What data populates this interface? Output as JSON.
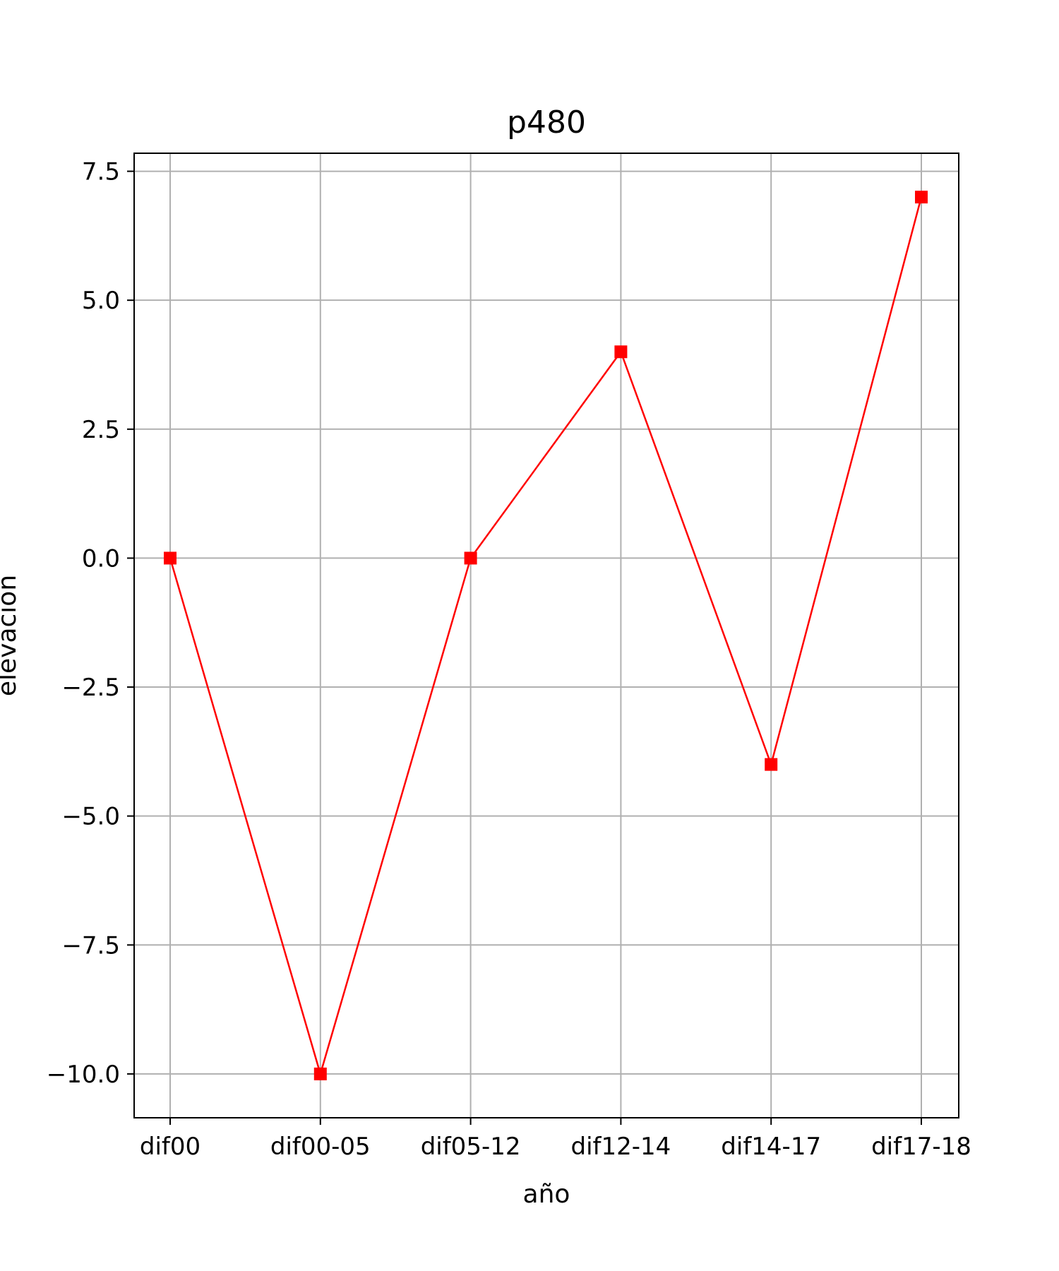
{
  "chart_data": {
    "type": "line",
    "title": "p480",
    "xlabel": "año",
    "ylabel": "elevación",
    "categories": [
      "dif00",
      "dif00-05",
      "dif05-12",
      "dif12-14",
      "dif14-17",
      "dif17-18"
    ],
    "series": [
      {
        "values": [
          0,
          -10,
          0,
          4,
          -4,
          7
        ],
        "color": "#ff0000",
        "marker": "square"
      }
    ],
    "yticks": [
      -10.0,
      -7.5,
      -5.0,
      -2.5,
      0.0,
      2.5,
      5.0,
      7.5
    ],
    "ytick_labels": [
      "−10.0",
      "−7.5",
      "−5.0",
      "−2.5",
      "0.0",
      "2.5",
      "5.0",
      "7.5"
    ],
    "ylim": [
      -10.85,
      7.85
    ],
    "grid": true,
    "legend": false
  }
}
